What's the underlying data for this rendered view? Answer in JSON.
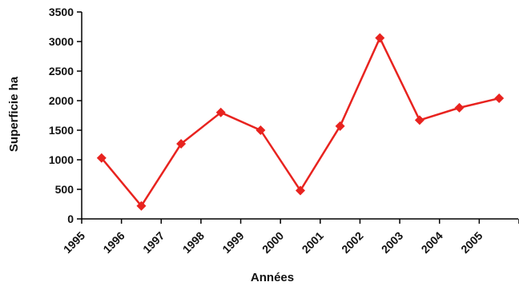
{
  "chart_data": {
    "type": "line",
    "title": "",
    "xlabel": "Années",
    "ylabel": "Superficie ha",
    "categories": [
      "1995",
      "1996",
      "1997",
      "1998",
      "1999",
      "2000",
      "2001",
      "2002",
      "2003",
      "2004",
      "2005"
    ],
    "series": [
      {
        "values": [
          1030,
          220,
          1270,
          1800,
          1500,
          480,
          1570,
          3060,
          1670,
          1880,
          2040
        ],
        "color": "#e8231f",
        "marker": "diamond"
      }
    ],
    "ylim": [
      0,
      3500
    ],
    "yticks": [
      0,
      500,
      1000,
      1500,
      2000,
      2500,
      3000,
      3500
    ],
    "grid": false,
    "legend": "none"
  }
}
